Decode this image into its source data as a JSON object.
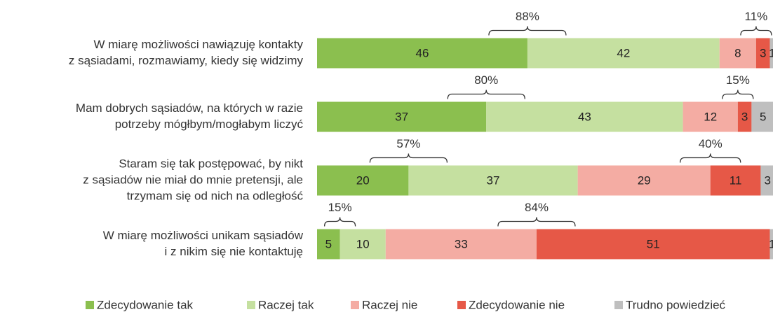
{
  "chart_data": {
    "type": "stacked_bar_horizontal",
    "categories": [
      [
        "W miarę możliwości nawiązuję kontakty",
        "z sąsiadami, rozmawiamy, kiedy się widzimy"
      ],
      [
        "Mam dobrych sąsiadów, na których w razie",
        "potrzeby mógłbym/mogłabym liczyć"
      ],
      [
        "Staram się tak postępować, by nikt",
        "z sąsiadów nie miał do mnie pretensji, ale",
        "trzymam się od nich na odległość"
      ],
      [
        "W miarę możliwości unikam sąsiadów",
        "i z nikim się nie kontaktuję"
      ]
    ],
    "series": [
      {
        "name": "Zdecydowanie tak",
        "color": "#8bbf4f",
        "values": [
          46,
          37,
          20,
          5
        ]
      },
      {
        "name": "Raczej tak",
        "color": "#c5e0a0",
        "values": [
          42,
          43,
          37,
          10
        ]
      },
      {
        "name": "Raczej nie",
        "color": "#f4aca3",
        "values": [
          8,
          12,
          29,
          33
        ]
      },
      {
        "name": "Zdecydowanie nie",
        "color": "#e65847",
        "values": [
          3,
          3,
          11,
          51
        ]
      },
      {
        "name": "Trudno powiedzieć",
        "color": "#bfbfbf",
        "values": [
          1,
          5,
          3,
          1
        ]
      }
    ],
    "net_positive": {
      "values": [
        88,
        80,
        57,
        15
      ],
      "value_labels": [
        "88%",
        "80%",
        "57%",
        "15%"
      ]
    },
    "net_negative": {
      "values": [
        11,
        15,
        40,
        84
      ],
      "value_labels": [
        "11%",
        "15%",
        "40%",
        "84%"
      ]
    },
    "xlim": [
      0,
      100
    ],
    "legend": "bottom"
  }
}
